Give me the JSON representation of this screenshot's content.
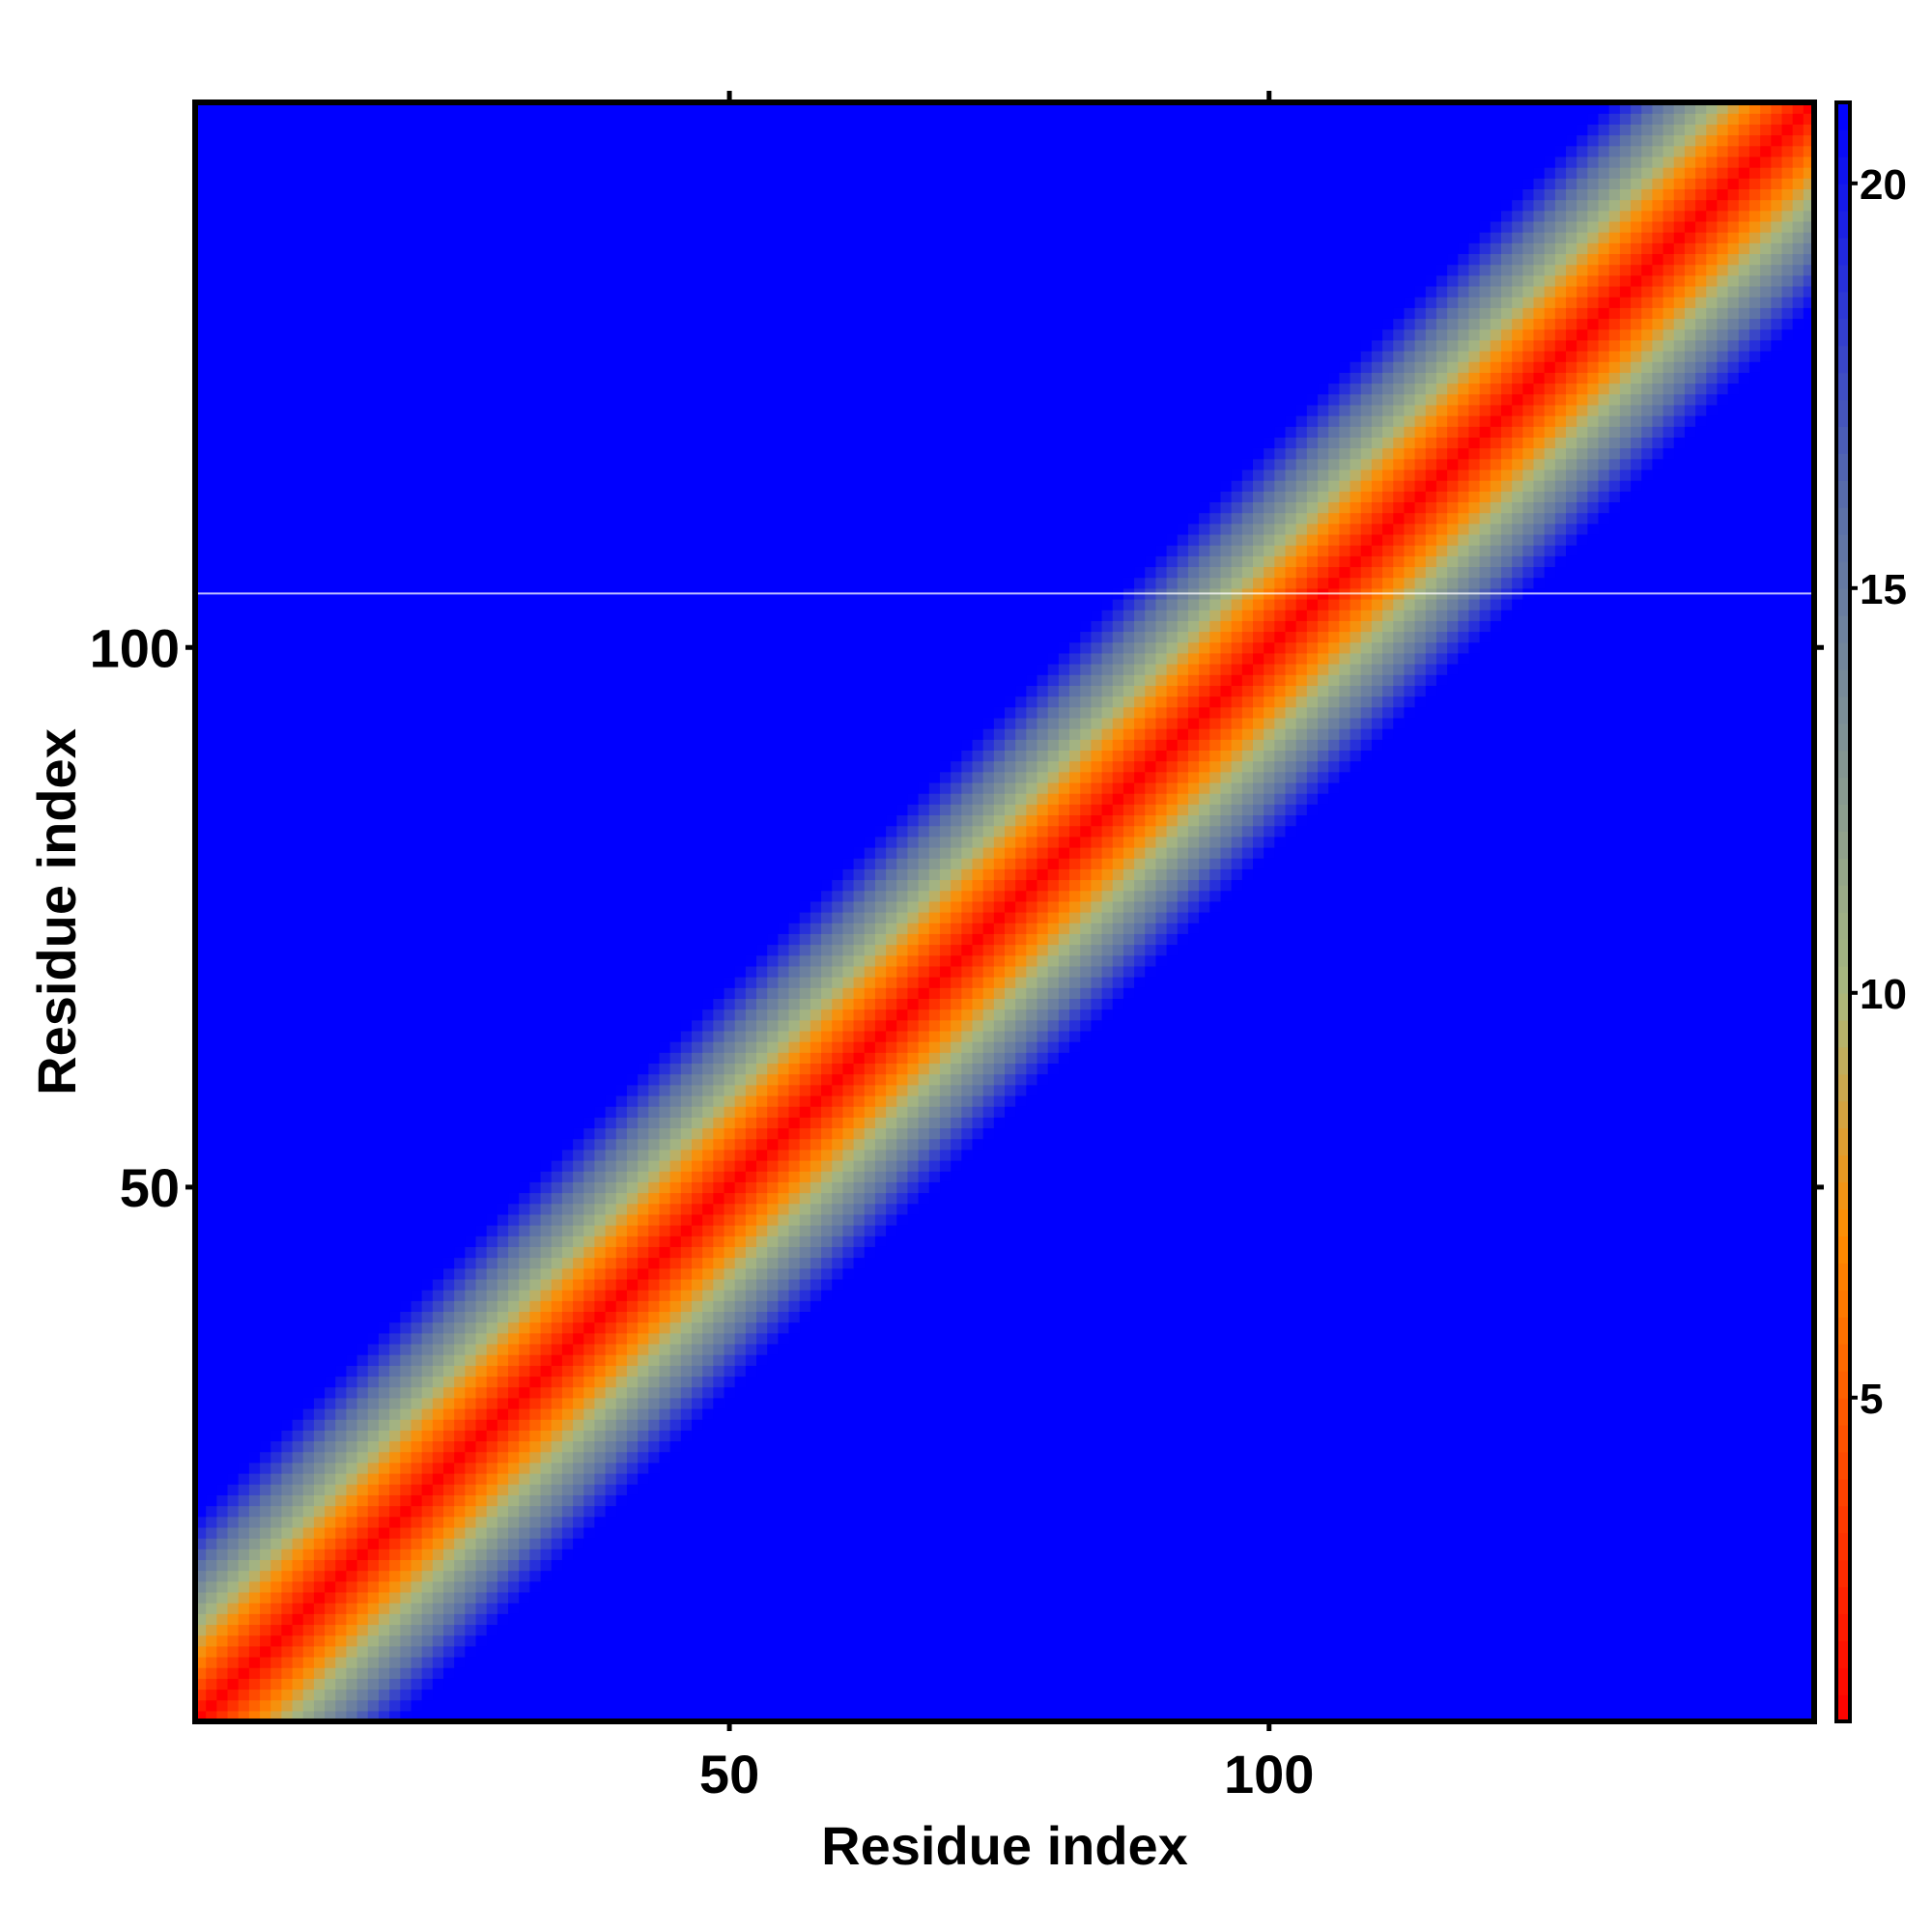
{
  "chart_data": {
    "type": "heatmap",
    "title": "",
    "xlabel": "Residue index",
    "ylabel": "Residue index",
    "n_residues": 150,
    "x_ticks": [
      50,
      100
    ],
    "y_ticks": [
      50,
      100
    ],
    "xlim": [
      1,
      150
    ],
    "ylim": [
      1,
      150
    ],
    "colorbar": {
      "ticks": [
        5,
        10,
        15,
        20
      ],
      "range": [
        1,
        21
      ],
      "colors": [
        "#ff0000",
        "#ff8c00",
        "#a9b97f",
        "#5a6fa8",
        "#0000ff"
      ]
    },
    "value_model": "distance grows with |i - j| along the diagonal, saturating at the colorbar maximum",
    "highlight_row_residue": 105
  }
}
